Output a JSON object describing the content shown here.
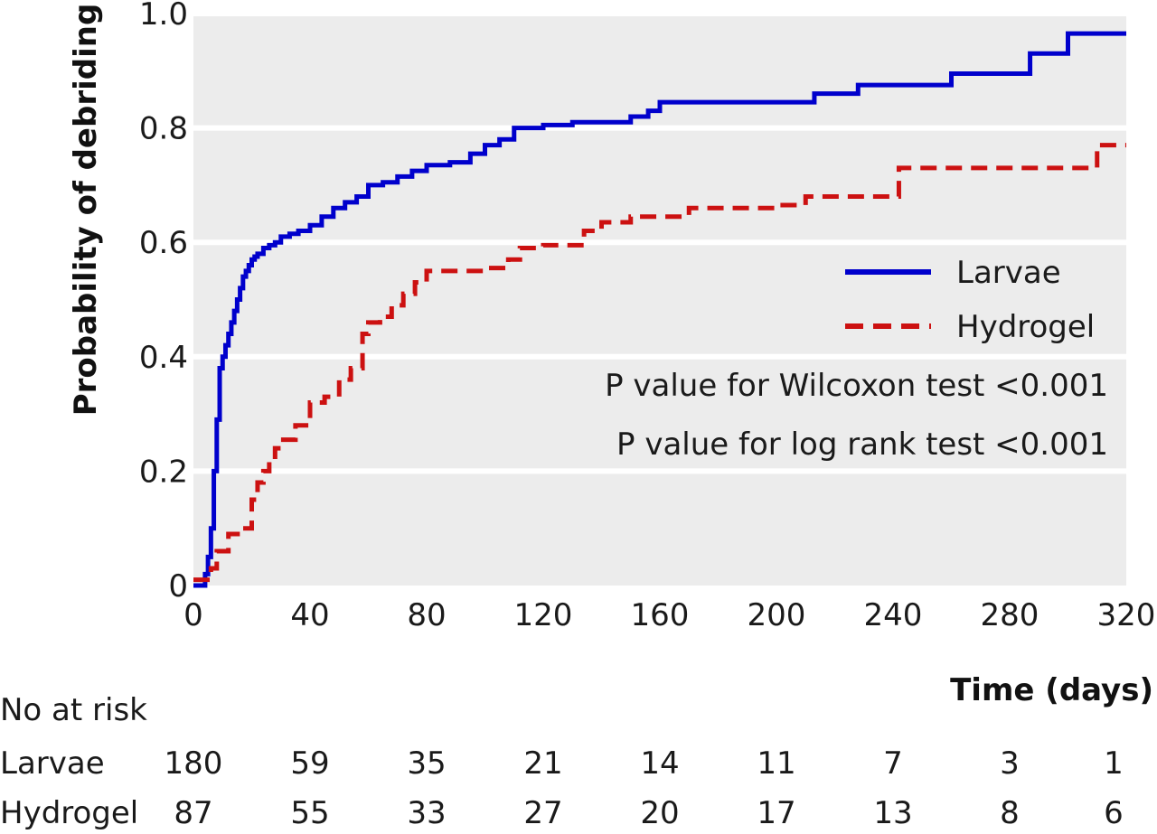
{
  "chart_data": {
    "type": "line",
    "ylabel": "Probability of debriding",
    "xlabel": "Time (days)",
    "xlim": [
      0,
      320
    ],
    "ylim": [
      0,
      1.0
    ],
    "x_ticks": [
      0,
      40,
      80,
      120,
      160,
      200,
      240,
      280,
      320
    ],
    "x_tick_labels": [
      "0",
      "40",
      "80",
      "120",
      "160",
      "200",
      "240",
      "280",
      "320"
    ],
    "y_ticks": [
      0,
      0.2,
      0.4,
      0.6,
      0.8,
      1.0
    ],
    "y_tick_labels": [
      "0",
      "0.2",
      "0.4",
      "0.6",
      "0.8",
      "1.0"
    ],
    "grid": "horizontal",
    "legend_position": "right",
    "annotations": [
      "P value for Wilcoxon test <0.001",
      "P value for log rank test <0.001"
    ],
    "series": [
      {
        "name": "Larvae",
        "color": "#0000cc",
        "style": "solid",
        "x": [
          0,
          3,
          4,
          5,
          6,
          7,
          8,
          9,
          10,
          11,
          12,
          13,
          14,
          15,
          16,
          17,
          18,
          19,
          20,
          21,
          22,
          24,
          26,
          28,
          30,
          33,
          36,
          40,
          44,
          48,
          52,
          56,
          60,
          65,
          70,
          75,
          80,
          88,
          95,
          100,
          105,
          110,
          120,
          130,
          140,
          150,
          156,
          160,
          180,
          200,
          213,
          220,
          228,
          240,
          260,
          280,
          287,
          295,
          300,
          310,
          320
        ],
        "y": [
          0,
          0,
          0.02,
          0.05,
          0.1,
          0.2,
          0.29,
          0.38,
          0.4,
          0.42,
          0.44,
          0.46,
          0.48,
          0.5,
          0.52,
          0.54,
          0.55,
          0.56,
          0.57,
          0.575,
          0.58,
          0.59,
          0.595,
          0.6,
          0.61,
          0.615,
          0.62,
          0.63,
          0.645,
          0.66,
          0.67,
          0.68,
          0.7,
          0.705,
          0.715,
          0.725,
          0.735,
          0.74,
          0.755,
          0.77,
          0.78,
          0.8,
          0.805,
          0.81,
          0.81,
          0.82,
          0.83,
          0.845,
          0.845,
          0.845,
          0.86,
          0.86,
          0.875,
          0.875,
          0.895,
          0.895,
          0.93,
          0.93,
          0.965,
          0.965,
          0.965
        ]
      },
      {
        "name": "Hydrogel",
        "color": "#cc1111",
        "style": "dashed",
        "x": [
          0,
          4,
          6,
          8,
          12,
          16,
          20,
          22,
          24,
          26,
          28,
          30,
          35,
          40,
          45,
          50,
          54,
          58,
          60,
          64,
          68,
          72,
          76,
          80,
          90,
          100,
          108,
          112,
          120,
          130,
          134,
          140,
          150,
          160,
          170,
          180,
          200,
          210,
          220,
          235,
          242,
          250,
          260,
          280,
          300,
          306,
          310,
          320
        ],
        "y": [
          0.01,
          0.01,
          0.03,
          0.06,
          0.09,
          0.1,
          0.15,
          0.18,
          0.2,
          0.22,
          0.24,
          0.255,
          0.28,
          0.32,
          0.33,
          0.36,
          0.38,
          0.44,
          0.46,
          0.47,
          0.49,
          0.51,
          0.53,
          0.55,
          0.55,
          0.555,
          0.57,
          0.59,
          0.595,
          0.595,
          0.62,
          0.635,
          0.645,
          0.645,
          0.66,
          0.66,
          0.665,
          0.68,
          0.68,
          0.68,
          0.73,
          0.73,
          0.73,
          0.73,
          0.73,
          0.73,
          0.77,
          0.77
        ]
      }
    ],
    "risk_table": {
      "title": "No at risk",
      "rows": [
        {
          "label": "Larvae",
          "values": [
            "180",
            "59",
            "35",
            "21",
            "14",
            "11",
            "7",
            "3",
            "1"
          ]
        },
        {
          "label": "Hydrogel",
          "values": [
            "87",
            "55",
            "33",
            "27",
            "20",
            "17",
            "13",
            "8",
            "6"
          ]
        }
      ]
    }
  }
}
